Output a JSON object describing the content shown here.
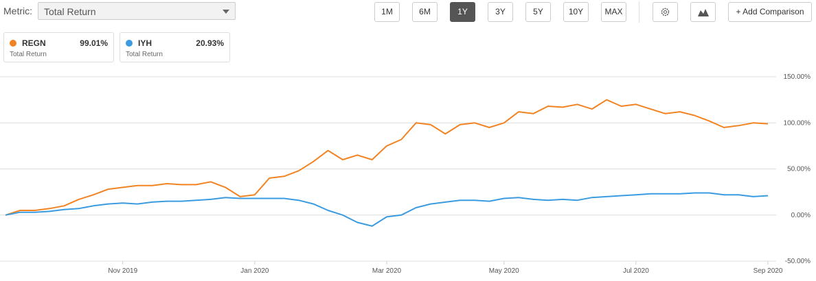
{
  "ui": {
    "metric_label": "Metric:",
    "metric_value": "Total Return",
    "range_buttons": [
      {
        "label": "1M"
      },
      {
        "label": "6M"
      },
      {
        "label": "1Y",
        "selected": true
      },
      {
        "label": "3Y"
      },
      {
        "label": "5Y"
      },
      {
        "label": "10Y"
      },
      {
        "label": "MAX"
      }
    ],
    "add_comparison": "+ Add Comparison",
    "legend_cards": [
      {
        "value": "99.01%",
        "metric": "Total Return"
      },
      {
        "value": "20.93%",
        "metric": "Total Return"
      }
    ]
  },
  "chart_data": {
    "type": "line",
    "categories": [
      null,
      null,
      null,
      null,
      null,
      null,
      null,
      null,
      "Nov 2019",
      null,
      null,
      null,
      null,
      null,
      null,
      null,
      null,
      "Jan 2020",
      null,
      null,
      null,
      null,
      null,
      null,
      null,
      null,
      "Mar 2020",
      null,
      null,
      null,
      null,
      null,
      null,
      null,
      "May 2020",
      null,
      null,
      null,
      null,
      null,
      null,
      null,
      null,
      "Jul 2020",
      null,
      null,
      null,
      null,
      null,
      null,
      null,
      null,
      "Sep 2020"
    ],
    "series": [
      {
        "name": "REGN",
        "color": "#f28322",
        "values": [
          0,
          5,
          5,
          7,
          10,
          17,
          22,
          28,
          30,
          32,
          32,
          34,
          33,
          33,
          36,
          30,
          20,
          22,
          40,
          42,
          48,
          58,
          70,
          60,
          65,
          60,
          75,
          82,
          100,
          98,
          88,
          98,
          100,
          95,
          100,
          112,
          110,
          118,
          117,
          120,
          115,
          125,
          118,
          120,
          115,
          110,
          112,
          108,
          102,
          95,
          97,
          100,
          99
        ]
      },
      {
        "name": "IYH",
        "color": "#3a9be0",
        "values": [
          0,
          3,
          3,
          4,
          6,
          7,
          10,
          12,
          13,
          12,
          14,
          15,
          15,
          16,
          17,
          19,
          18,
          18,
          18,
          18,
          16,
          12,
          5,
          0,
          -8,
          -12,
          -2,
          0,
          8,
          12,
          14,
          16,
          16,
          15,
          18,
          19,
          17,
          16,
          17,
          16,
          19,
          20,
          21,
          22,
          23,
          23,
          23,
          24,
          24,
          22,
          22,
          20,
          21
        ]
      }
    ],
    "ylim": [
      -50,
      150
    ],
    "yticks": [
      {
        "value": -50,
        "label": "-50.00%"
      },
      {
        "value": 0,
        "label": "0.00%"
      },
      {
        "value": 50,
        "label": "50.00%"
      },
      {
        "value": 100,
        "label": "100.00%"
      },
      {
        "value": 150,
        "label": "150.00%"
      }
    ],
    "grid": true
  }
}
